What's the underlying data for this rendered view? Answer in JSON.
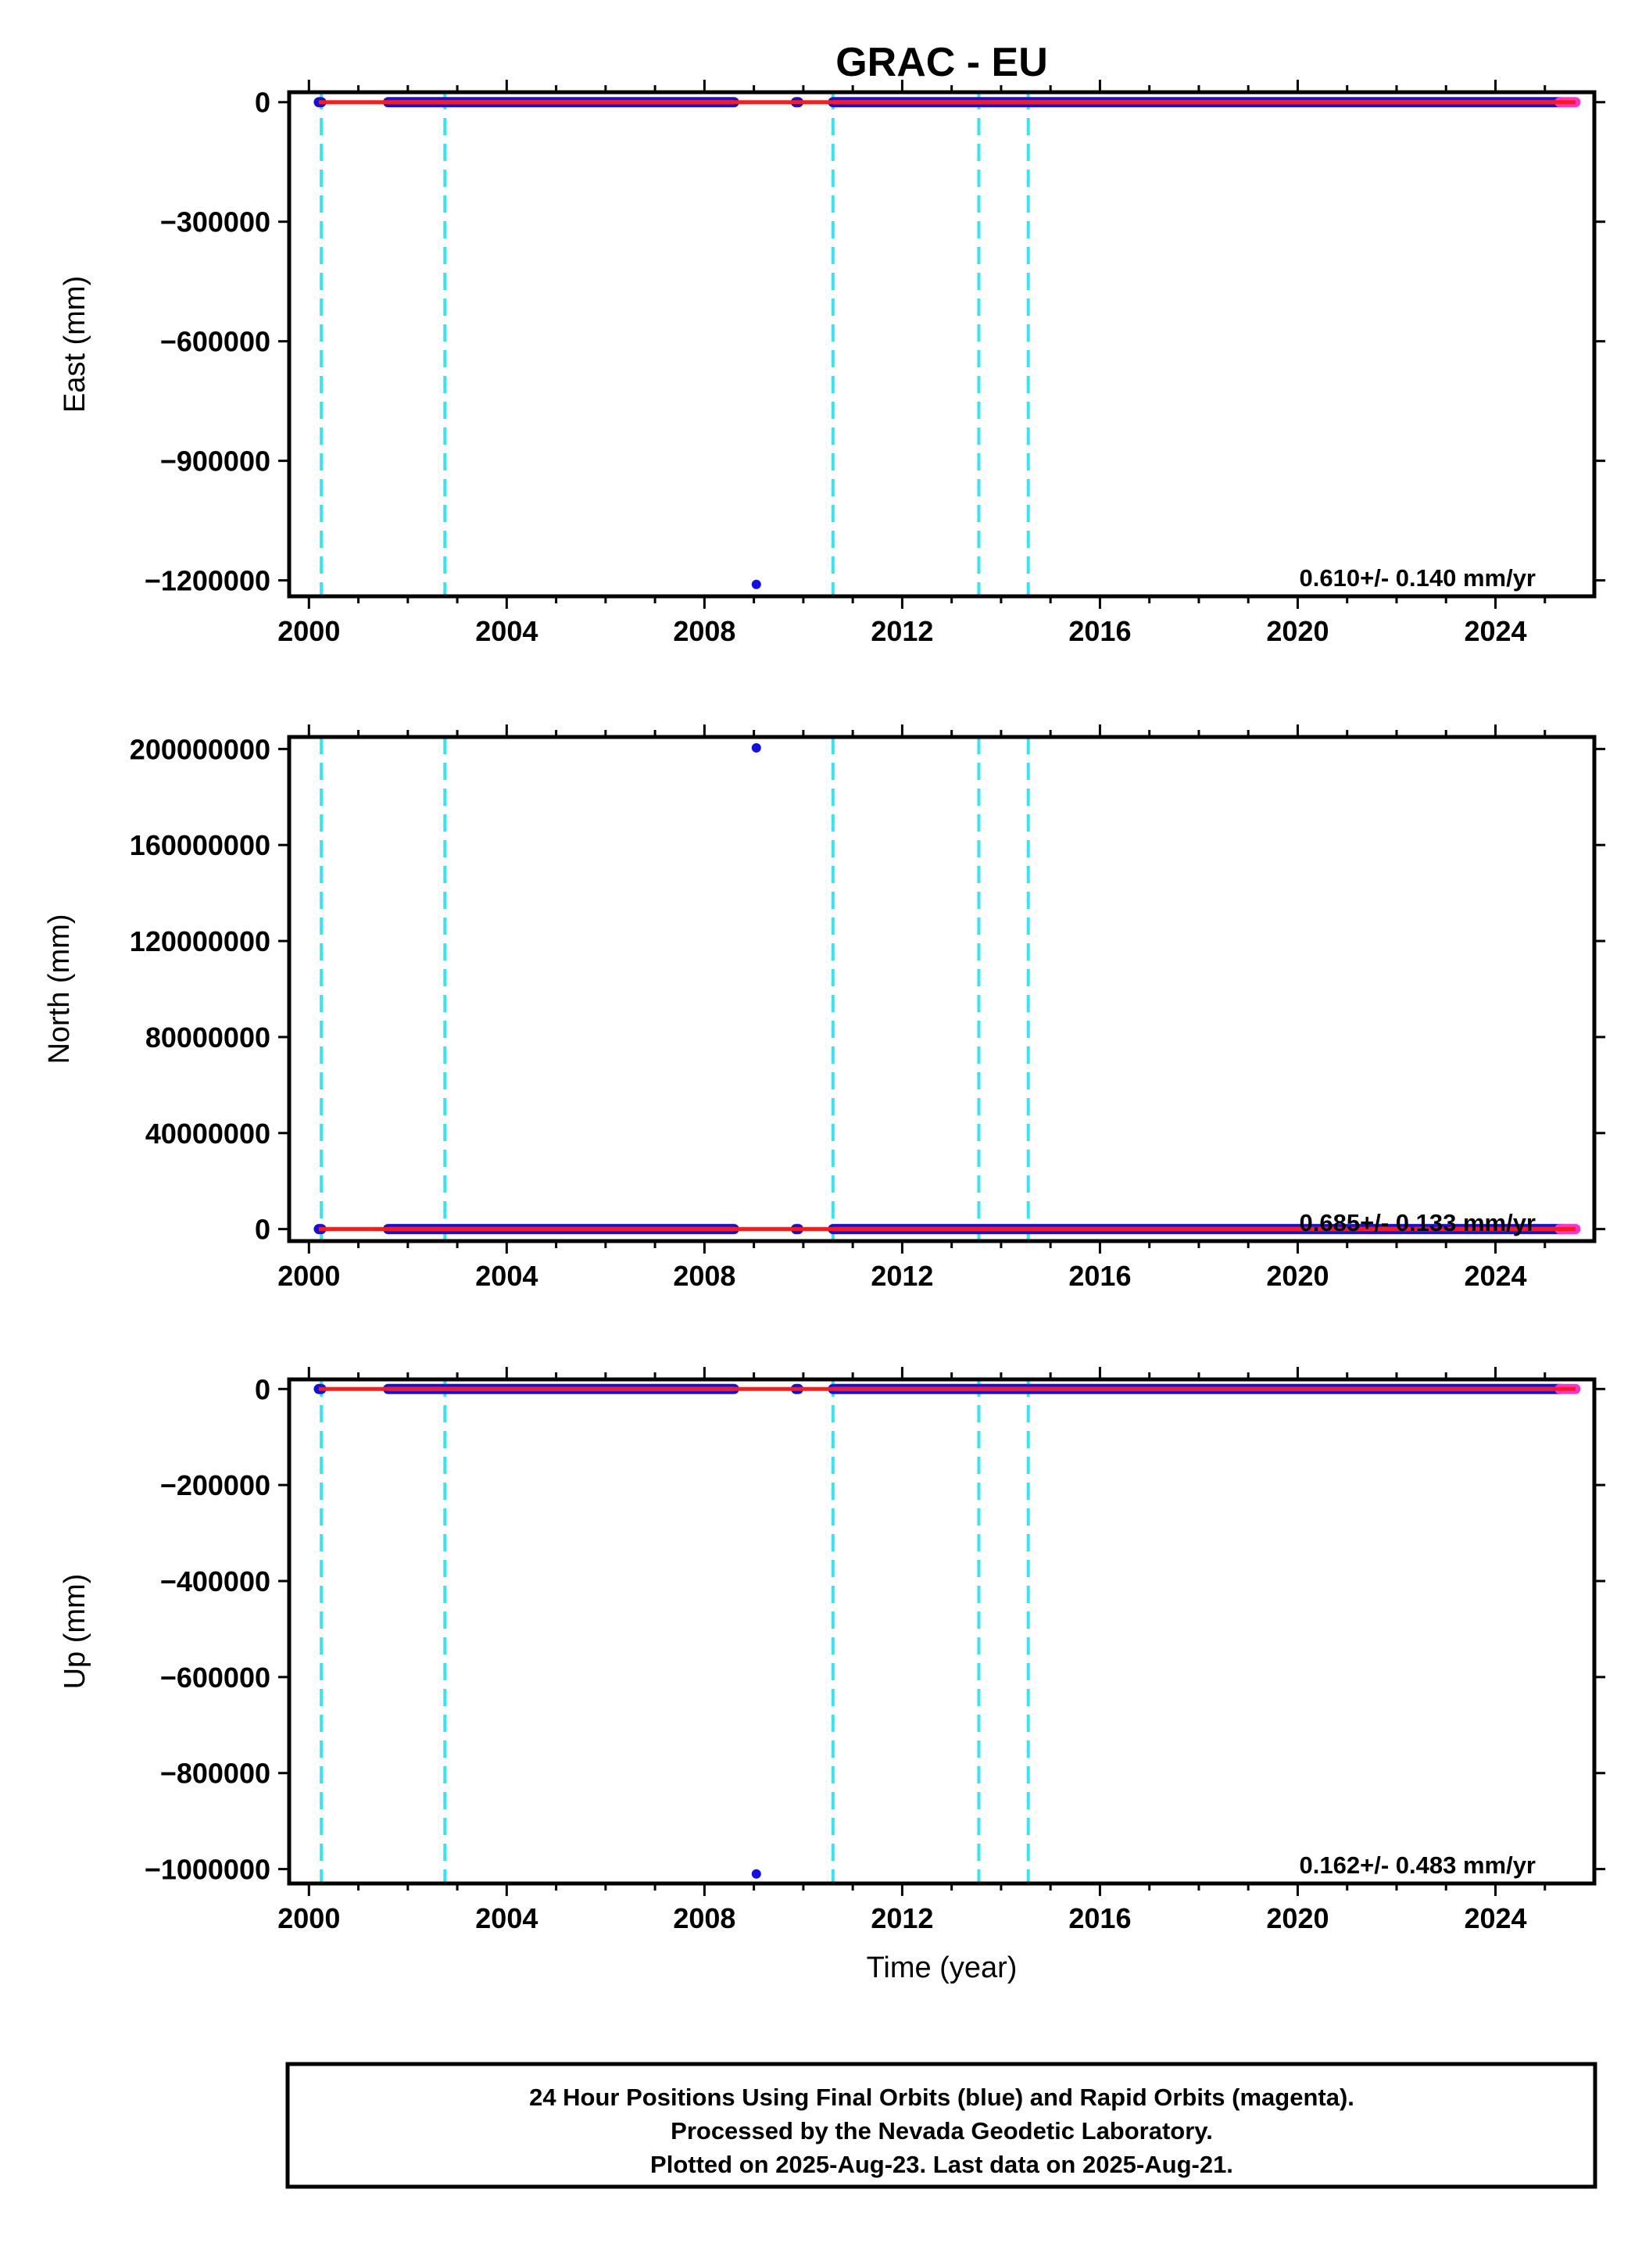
{
  "title": "GRAC - EU",
  "colors": {
    "final_orbits": "#1010e0",
    "rapid_orbits": "#ff33cc",
    "trend": "#ff1a1a",
    "breaks": "#33e6f0"
  },
  "chart_data": [
    {
      "type": "scatter",
      "component": "east",
      "ylabel": "East (mm)",
      "xlabel": "",
      "xlim": [
        1999.6,
        2026.0
      ],
      "ylim": [
        -1240000,
        25000
      ],
      "x_ticks": [
        "2000",
        "2004",
        "2008",
        "2012",
        "2016",
        "2020",
        "2024"
      ],
      "y_ticks": [
        "0",
        "−300000",
        "−600000",
        "−900000",
        "−1200000"
      ],
      "y_tick_values": [
        0,
        -300000,
        -600000,
        -900000,
        -1200000
      ],
      "rate_label": "0.610+/- 0.140 mm/yr",
      "equipment_changes": [
        2000.25,
        2002.75,
        2010.6,
        2013.55,
        2014.55
      ],
      "series": [
        {
          "name": "Final Orbits",
          "values_segments": [
            [
              2000.2,
              2000.25,
              0
            ],
            [
              2001.6,
              2008.6,
              0
            ],
            [
              2009.85,
              2009.9,
              0
            ],
            [
              2010.6,
              2025.3,
              0
            ]
          ],
          "outliers": [
            [
              2009.05,
              -1210000
            ]
          ]
        },
        {
          "name": "Rapid Orbits",
          "values_segments": [
            [
              2025.3,
              2025.62,
              0
            ]
          ]
        }
      ]
    },
    {
      "type": "scatter",
      "component": "north",
      "ylabel": "North (mm)",
      "xlabel": "",
      "xlim": [
        1999.6,
        2026.0
      ],
      "ylim": [
        -5000000,
        205000000
      ],
      "x_ticks": [
        "2000",
        "2004",
        "2008",
        "2012",
        "2016",
        "2020",
        "2024"
      ],
      "y_ticks": [
        "200000000",
        "160000000",
        "120000000",
        "80000000",
        "40000000",
        "0"
      ],
      "y_tick_values": [
        200000000,
        160000000,
        120000000,
        80000000,
        40000000,
        0
      ],
      "rate_label": "0.685+/- 0.133 mm/yr",
      "equipment_changes": [
        2000.25,
        2002.75,
        2010.6,
        2013.55,
        2014.55
      ],
      "series": [
        {
          "name": "Final Orbits",
          "values_segments": [
            [
              2000.2,
              2000.25,
              0
            ],
            [
              2001.6,
              2008.6,
              0
            ],
            [
              2009.85,
              2009.9,
              0
            ],
            [
              2010.6,
              2025.3,
              0
            ]
          ],
          "outliers": [
            [
              2009.05,
              200500000
            ]
          ]
        },
        {
          "name": "Rapid Orbits",
          "values_segments": [
            [
              2025.3,
              2025.62,
              0
            ]
          ]
        }
      ]
    },
    {
      "type": "scatter",
      "component": "up",
      "ylabel": "Up (mm)",
      "xlabel": "Time (year)",
      "xlim": [
        1999.6,
        2026.0
      ],
      "ylim": [
        -1030000,
        20000
      ],
      "x_ticks": [
        "2000",
        "2004",
        "2008",
        "2012",
        "2016",
        "2020",
        "2024"
      ],
      "y_ticks": [
        "0",
        "−200000",
        "−400000",
        "−600000",
        "−800000",
        "−1000000"
      ],
      "y_tick_values": [
        0,
        -200000,
        -400000,
        -600000,
        -800000,
        -1000000
      ],
      "rate_label": "0.162+/- 0.483 mm/yr",
      "equipment_changes": [
        2000.25,
        2002.75,
        2010.6,
        2013.55,
        2014.55
      ],
      "series": [
        {
          "name": "Final Orbits",
          "values_segments": [
            [
              2000.2,
              2000.25,
              0
            ],
            [
              2001.6,
              2008.6,
              0
            ],
            [
              2009.85,
              2009.9,
              0
            ],
            [
              2010.6,
              2025.3,
              0
            ]
          ],
          "outliers": [
            [
              2009.05,
              -1010000
            ]
          ]
        },
        {
          "name": "Rapid Orbits",
          "values_segments": [
            [
              2025.3,
              2025.62,
              0
            ]
          ]
        }
      ]
    }
  ],
  "footer": {
    "line1": "24 Hour Positions Using Final Orbits (blue) and Rapid Orbits (magenta).",
    "line2": "Processed by the Nevada Geodetic Laboratory.",
    "line3": "Plotted on 2025-Aug-23. Last data on 2025-Aug-21."
  }
}
